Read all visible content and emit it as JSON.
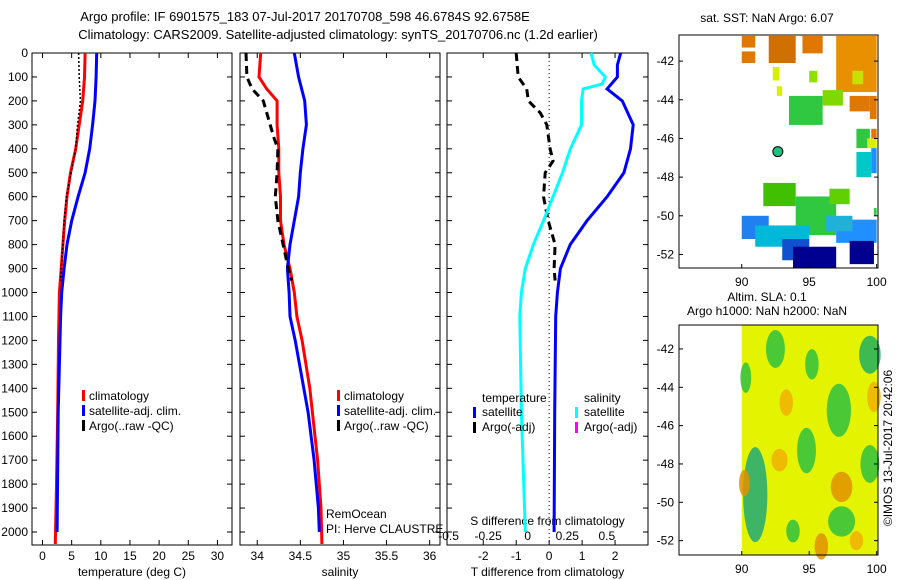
{
  "header": {
    "title_line1": "Argo profile: IF 6901575_183 07-Jul-2017 20170708_598 46.6784S 92.6758E",
    "title_line2": "Climatology: CARS2009. Satellite-adjusted climatology: synTS_20170706.nc (1.2d earlier)"
  },
  "colors": {
    "climatology": "#ff0000",
    "satellite": "#0000ff",
    "argo": "#000000",
    "salinity_satellite": "#00ffff",
    "salinity_argo": "#ff00ff"
  },
  "chart_data": [
    {
      "type": "line",
      "title": "",
      "xlabel": "temperature (deg C)",
      "ylabel": "",
      "xlim": [
        -1.8,
        32.5
      ],
      "ylim": [
        2054,
        0
      ],
      "xticks": [
        0,
        5,
        10,
        15,
        20,
        25,
        30
      ],
      "yticks": [
        0,
        100,
        200,
        300,
        400,
        500,
        600,
        700,
        800,
        900,
        1000,
        1100,
        1200,
        1300,
        1400,
        1500,
        1600,
        1700,
        1800,
        1900,
        2000
      ],
      "legend": [
        "climatology",
        "satellite-adj. clim.",
        "Argo(..raw -QC)"
      ],
      "legend_position": "bottom-center",
      "series": [
        {
          "name": "climatology",
          "color": "#ff0000",
          "depth": [
            0,
            100,
            200,
            300,
            400,
            500,
            600,
            700,
            800,
            900,
            1000,
            1200,
            1500,
            1800,
            2050
          ],
          "values": [
            7.3,
            7.2,
            6.9,
            6.3,
            5.7,
            4.8,
            4.2,
            3.8,
            3.5,
            3.2,
            2.9,
            2.75,
            2.6,
            2.4,
            2.2
          ]
        },
        {
          "name": "satellite-adj. clim.",
          "color": "#0000ff",
          "depth": [
            0,
            100,
            200,
            300,
            400,
            500,
            600,
            700,
            800,
            900,
            1000,
            1100,
            1500,
            2000
          ],
          "values": [
            9.3,
            9.2,
            9.0,
            8.6,
            8.1,
            7.3,
            6.1,
            5.0,
            4.2,
            3.7,
            3.3,
            3.1,
            2.7,
            2.5
          ]
        },
        {
          "name": "Argo(..raw -QC)",
          "color": "#000000",
          "style": "dotted",
          "depth": [
            0,
            100,
            200,
            300,
            400,
            500,
            600,
            700,
            800,
            900,
            950
          ],
          "values": [
            6.2,
            6.3,
            6.5,
            6.0,
            5.7,
            4.9,
            4.1,
            3.7,
            3.5,
            3.2,
            3.1
          ]
        }
      ]
    },
    {
      "type": "line",
      "xlabel": "salinity",
      "xlim": [
        33.8,
        36.12
      ],
      "ylim": [
        2054,
        0
      ],
      "xticks": [
        34,
        34.5,
        35,
        35.5,
        36
      ],
      "legend": [
        "climatology",
        "satellite-adj. clim.",
        "Argo(..raw -QC)"
      ],
      "legend_position": "bottom-center",
      "annotation": [
        "RemOcean",
        "PI: Herve CLAUSTRE"
      ],
      "series": [
        {
          "name": "climatology",
          "color": "#ff0000",
          "depth": [
            0,
            100,
            150,
            200,
            300,
            400,
            500,
            600,
            700,
            800,
            900,
            1000,
            1100,
            1200,
            1400,
            1500,
            1700,
            1900,
            2050
          ],
          "values": [
            34.04,
            34.02,
            34.11,
            34.23,
            34.23,
            34.25,
            34.25,
            34.27,
            34.27,
            34.31,
            34.38,
            34.43,
            34.46,
            34.52,
            34.61,
            34.64,
            34.7,
            34.74,
            34.75
          ]
        },
        {
          "name": "satellite-adj. clim.",
          "color": "#0000ff",
          "depth": [
            0,
            100,
            200,
            300,
            400,
            500,
            600,
            700,
            800,
            900,
            1000,
            1100,
            1200,
            1400,
            1500,
            1700,
            1900,
            2000
          ],
          "values": [
            34.43,
            34.48,
            34.55,
            34.57,
            34.53,
            34.5,
            34.48,
            34.43,
            34.38,
            34.35,
            34.37,
            34.38,
            34.44,
            34.54,
            34.59,
            34.66,
            34.71,
            34.72
          ]
        },
        {
          "name": "Argo(..raw -QC)",
          "color": "#000000",
          "style": "dashed",
          "depth": [
            0,
            100,
            150,
            200,
            300,
            350,
            400,
            500,
            600,
            700,
            800,
            900,
            950
          ],
          "values": [
            33.87,
            33.88,
            33.94,
            34.07,
            34.15,
            34.19,
            34.24,
            34.23,
            34.21,
            34.24,
            34.3,
            34.36,
            34.4
          ]
        }
      ]
    },
    {
      "type": "line",
      "xlabel": "T difference from climatology",
      "xlabel2": "S difference from climatology",
      "xlim": [
        -3.1,
        3.0
      ],
      "xlim2": [
        -0.51,
        0.76
      ],
      "ylim": [
        2054,
        0
      ],
      "xticks": [
        -2,
        -1,
        0,
        1,
        2
      ],
      "xticks2": [
        -0.5,
        -0.25,
        0,
        0.25,
        0.5
      ],
      "xtick_labels2": [
        "-0.5",
        "-0.25",
        "0",
        "0.25",
        "0.5"
      ],
      "legend_temperature": {
        "title": "temperature",
        "items": [
          "satellite",
          "Argo(-adj)"
        ]
      },
      "legend_salinity": {
        "title": "salinity",
        "items": [
          "satellite",
          "Argo(-adj)"
        ]
      },
      "series": [
        {
          "name": "temperature satellite",
          "axis": "T",
          "color": "#0000ff",
          "depth": [
            0,
            50,
            100,
            150,
            200,
            300,
            400,
            500,
            600,
            700,
            800,
            900,
            1000,
            1100,
            1500,
            2000
          ],
          "values": [
            2.17,
            2.07,
            2.07,
            1.76,
            2.22,
            2.55,
            2.47,
            2.27,
            1.76,
            1.15,
            0.64,
            0.34,
            0.25,
            0.2,
            0.17,
            0.15
          ]
        },
        {
          "name": "temperature Argo(-adj)",
          "axis": "T",
          "color": "#000000",
          "style": "dashed",
          "depth": [
            0,
            100,
            150,
            200,
            250,
            300,
            400,
            450,
            500,
            600,
            700,
            800,
            900,
            950
          ],
          "values": [
            -1.0,
            -0.94,
            -0.68,
            -0.63,
            -0.27,
            -0.07,
            0.03,
            0.12,
            -0.12,
            -0.17,
            -0.03,
            0.18,
            0.15,
            0.18
          ]
        },
        {
          "name": "salinity satellite",
          "axis": "S",
          "color": "#00ffff",
          "depth": [
            0,
            50,
            100,
            130,
            150,
            200,
            300,
            400,
            500,
            600,
            700,
            800,
            900,
            1000,
            1100,
            1500,
            2000
          ],
          "values": [
            0.4,
            0.42,
            0.49,
            0.47,
            0.35,
            0.34,
            0.34,
            0.27,
            0.22,
            0.16,
            0.1,
            0.035,
            -0.015,
            -0.04,
            -0.05,
            -0.04,
            -0.015
          ]
        }
      ]
    }
  ],
  "maps": {
    "sst": {
      "title": "sat. SST: NaN Argo: 6.07",
      "lat_ticks": [
        -42,
        -44,
        -46,
        -48,
        -50,
        -52
      ],
      "lon_ticks": [
        90,
        95,
        100
      ],
      "argo_position": {
        "lon": 92.6758,
        "lat": -46.6784
      },
      "argo_color": "#20c080"
    },
    "sla": {
      "title_line1": "Altim. SLA: 0.1",
      "title_line2": "Argo h1000: NaN h2000: NaN",
      "lat_ticks": [
        -42,
        -44,
        -46,
        -48,
        -50,
        -52
      ],
      "lon_ticks": [
        90,
        95,
        100
      ]
    }
  },
  "footer": {
    "credit": "©IMOS 13-Jul-2017 20:42:06"
  }
}
